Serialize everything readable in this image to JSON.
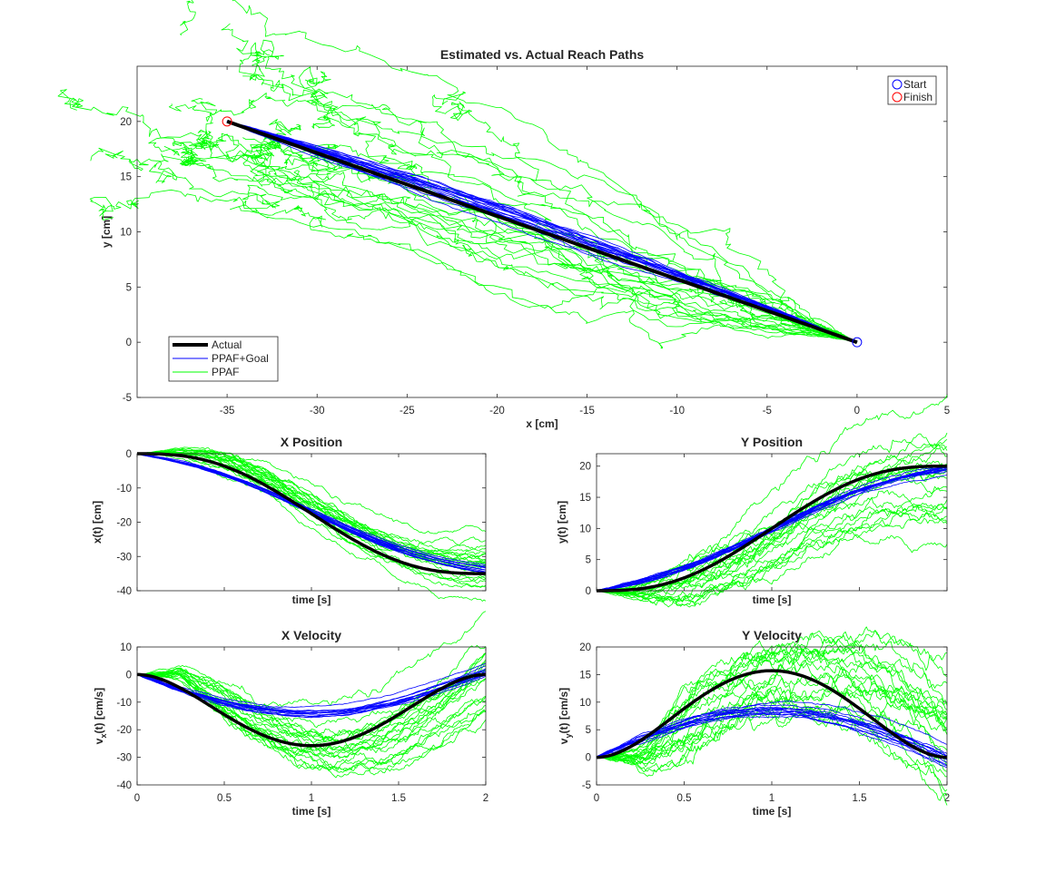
{
  "chart_data": [
    {
      "id": "reach",
      "type": "line",
      "title": "Estimated vs. Actual Reach Paths",
      "xlabel": "x [cm]",
      "ylabel": "y [cm]",
      "xlim": [
        -40,
        5
      ],
      "ylim": [
        -5,
        25
      ],
      "xticks": [
        -35,
        -30,
        -25,
        -20,
        -15,
        -10,
        -5,
        0,
        5
      ],
      "yticks": [
        -5,
        0,
        5,
        10,
        15,
        20
      ],
      "xtick_labels": [
        "-35",
        "-30",
        "-25",
        "-20",
        "-15",
        "-10",
        "-5",
        "0",
        "5"
      ],
      "ytick_labels": [
        "-5",
        "0",
        "5",
        "10",
        "15",
        "20"
      ],
      "series": [
        {
          "name": "Actual",
          "color": "#000000",
          "description": "straight minimum-jerk reach from (0,0) to (-35,20)"
        },
        {
          "name": "PPAF+Goal",
          "color": "#0000ff",
          "description": "~20 noisy estimates tightly clustered along the actual path"
        },
        {
          "name": "PPAF",
          "color": "#00ff00",
          "description": "~20 noisy random-walk estimates scattered around the actual path"
        }
      ],
      "markers": [
        {
          "name": "Start",
          "x": 0,
          "y": 0,
          "color": "#0000ff"
        },
        {
          "name": "Finish",
          "x": -35,
          "y": 20,
          "color": "#ff0000"
        }
      ],
      "legend_main": [
        "Actual",
        "PPAF+Goal",
        "PPAF"
      ],
      "legend_main_position": "bottom-left",
      "legend_markers": [
        "Start",
        "Finish"
      ],
      "legend_markers_position": "top-right"
    },
    {
      "id": "xpos",
      "type": "line",
      "title": "X Position",
      "xlabel": "time [s]",
      "ylabel": "x(t) [cm]",
      "xlim": [
        0,
        2
      ],
      "ylim": [
        -40,
        0
      ],
      "yticks": [
        -40,
        -30,
        -20,
        -10,
        0
      ],
      "ytick_labels": [
        "-40",
        "-30",
        "-20",
        "-10",
        "0"
      ],
      "x_tick_labels_shown": false,
      "actual": {
        "x": [
          0,
          0.5,
          1,
          1.5,
          2
        ],
        "y": [
          0,
          -5.5,
          -17.5,
          -29.5,
          -35
        ]
      },
      "ppaf_goal_endpoint": {
        "x": 2,
        "y": -34
      }
    },
    {
      "id": "ypos",
      "type": "line",
      "title": "Y Position",
      "xlabel": "time [s]",
      "ylabel": "y(t) [cm]",
      "xlim": [
        0,
        2
      ],
      "ylim": [
        0,
        22
      ],
      "yticks": [
        0,
        5,
        10,
        15,
        20
      ],
      "ytick_labels": [
        "0",
        "5",
        "10",
        "15",
        "20"
      ],
      "x_tick_labels_shown": false,
      "actual": {
        "x": [
          0,
          0.5,
          1,
          1.5,
          2
        ],
        "y": [
          0,
          3.1,
          10,
          16.9,
          20
        ]
      },
      "ppaf_goal_endpoint": {
        "x": 2,
        "y": 19.5
      }
    },
    {
      "id": "xvel",
      "type": "line",
      "title": "X Velocity",
      "xlabel": "time [s]",
      "ylabel_main": "v",
      "ylabel_sub": "x",
      "ylabel_rest": "(t) [cm/s]",
      "xlim": [
        0,
        2
      ],
      "ylim": [
        -40,
        10
      ],
      "xticks": [
        0,
        0.5,
        1,
        1.5,
        2
      ],
      "xtick_labels": [
        "0",
        "0.5",
        "1",
        "1.5",
        "2"
      ],
      "yticks": [
        -40,
        -30,
        -20,
        -10,
        0,
        10
      ],
      "ytick_labels": [
        "-40",
        "-30",
        "-20",
        "-10",
        "0",
        "10"
      ],
      "actual_peak": {
        "x": 1,
        "y": -27.5
      },
      "ppaf_goal_peak": {
        "x": 1,
        "y": -14.5
      }
    },
    {
      "id": "yvel",
      "type": "line",
      "title": "Y Velocity",
      "xlabel": "time [s]",
      "ylabel_main": "v",
      "ylabel_sub": "y",
      "ylabel_rest": "(t) [cm/s]",
      "xlim": [
        0,
        2
      ],
      "ylim": [
        -5,
        20
      ],
      "xticks": [
        0,
        0.5,
        1,
        1.5,
        2
      ],
      "xtick_labels": [
        "0",
        "0.5",
        "1",
        "1.5",
        "2"
      ],
      "yticks": [
        -5,
        0,
        5,
        10,
        15,
        20
      ],
      "ytick_labels": [
        "-5",
        "0",
        "5",
        "10",
        "15",
        "20"
      ],
      "actual_peak": {
        "x": 1,
        "y": 15.7
      },
      "ppaf_goal_peak": {
        "x": 1,
        "y": 8.5
      }
    }
  ]
}
